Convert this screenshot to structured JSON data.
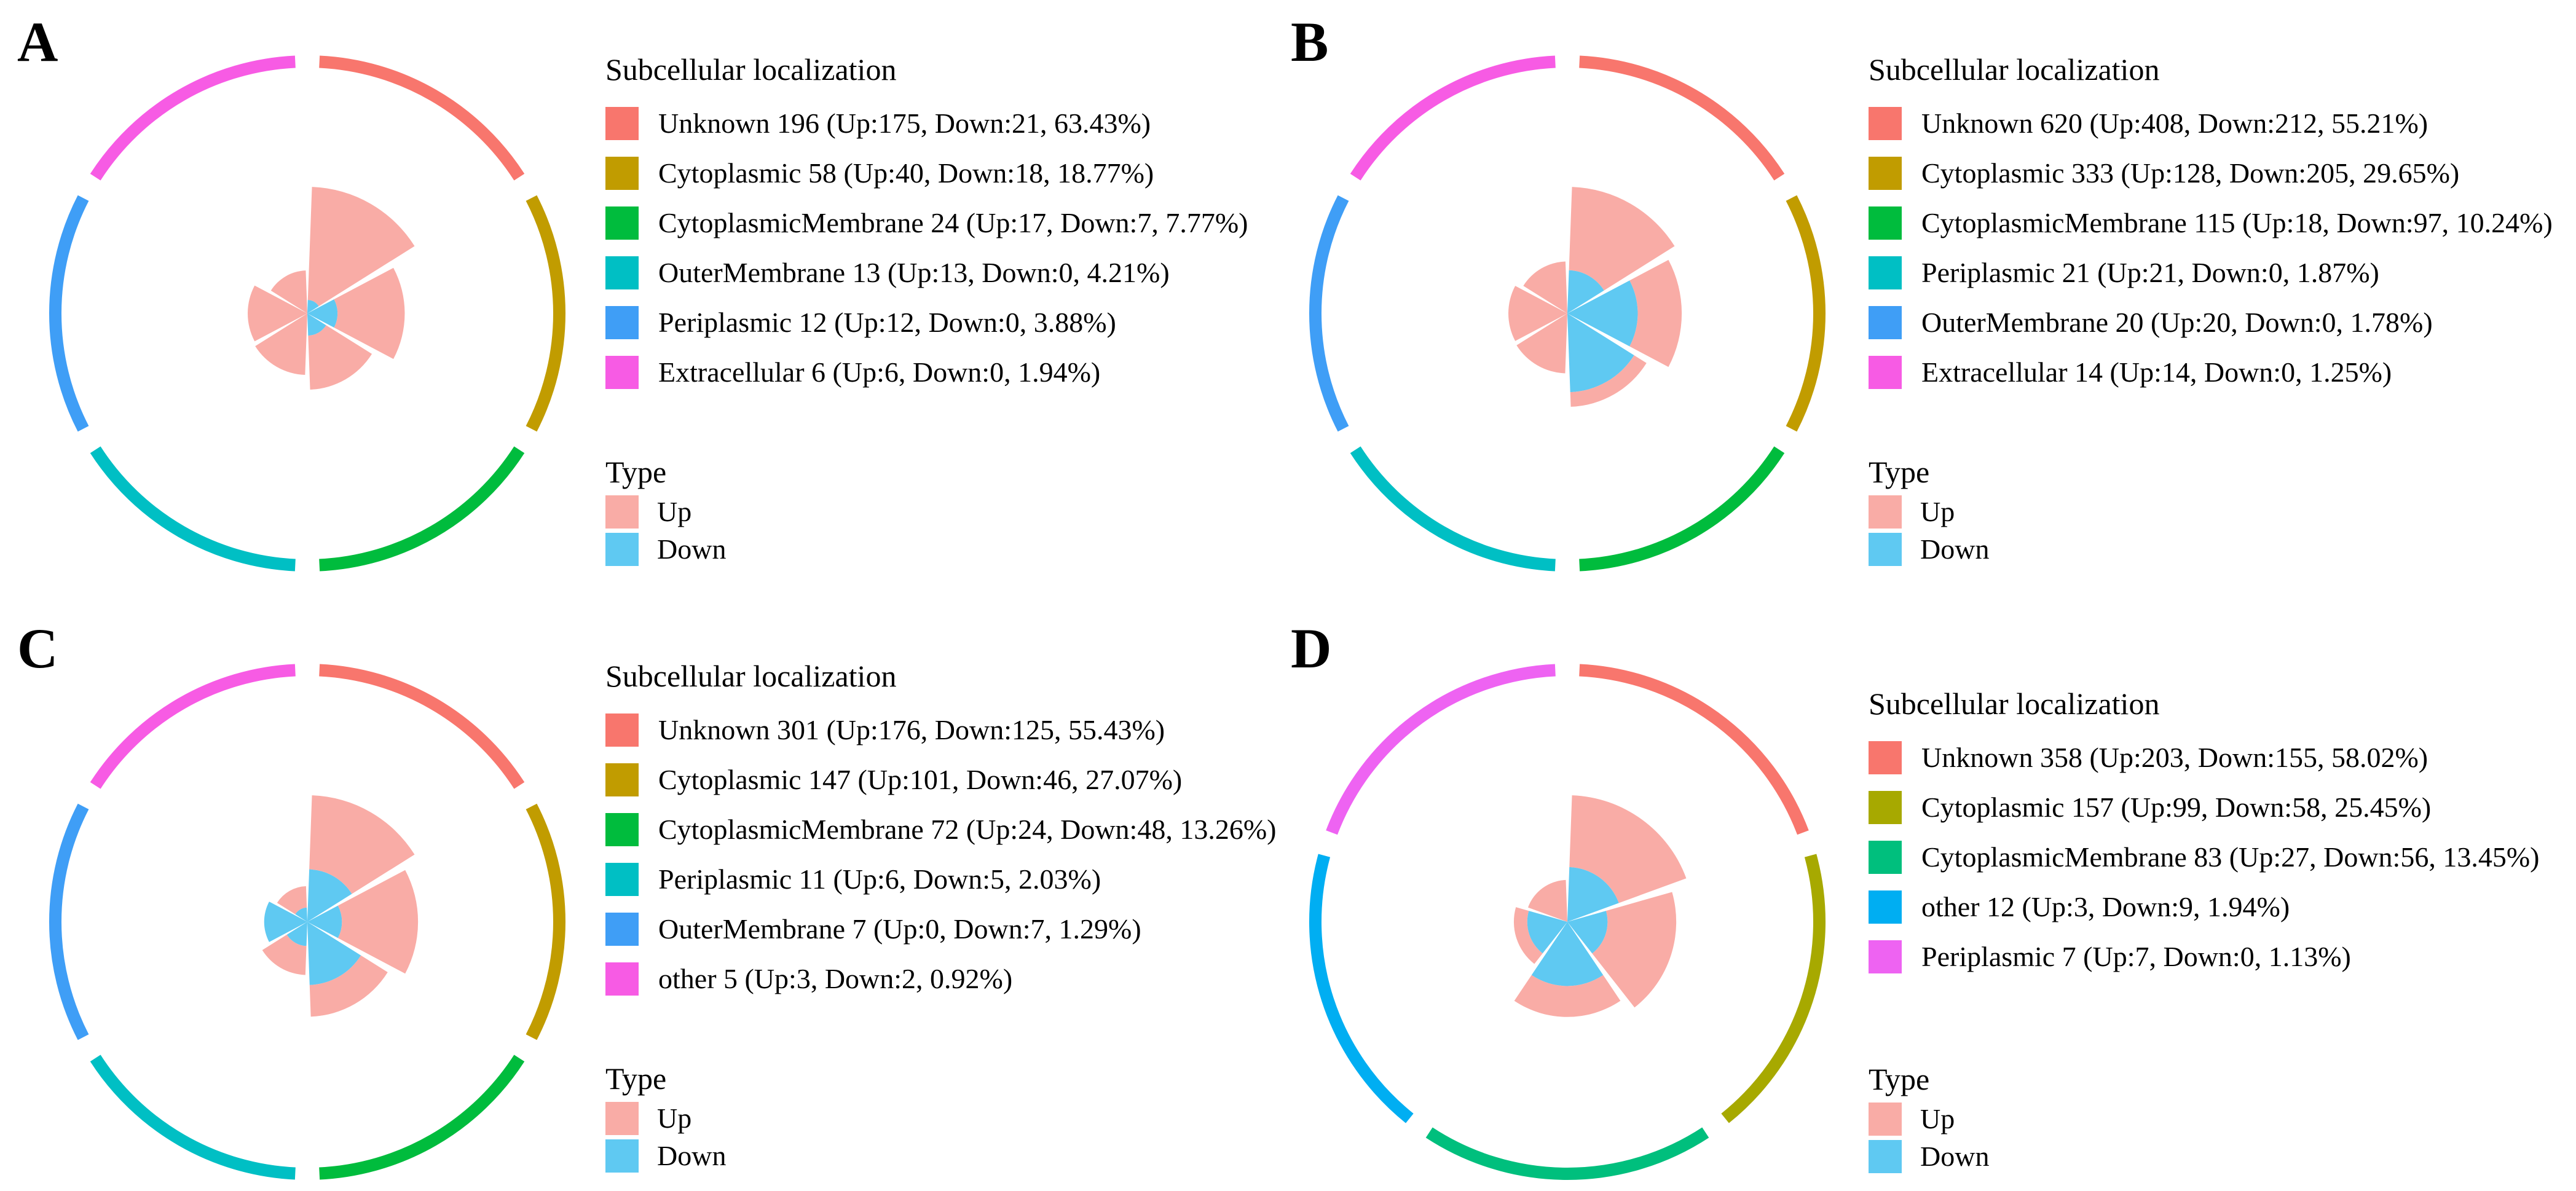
{
  "figure": {
    "background": "#FFFFFF",
    "panels": [
      {
        "letter": "A"
      },
      {
        "letter": "B"
      },
      {
        "letter": "C"
      },
      {
        "letter": "D"
      }
    ]
  },
  "type_legend": {
    "title": "Type",
    "items": [
      {
        "label": "Up",
        "color": "#F9ACA6"
      },
      {
        "label": "Down",
        "color": "#5FC9F2"
      }
    ]
  },
  "chart_data": [
    {
      "panel": "A",
      "type": "polar-stacked-rose",
      "legend_title": "Subcellular localization",
      "layout_hint": "equal angular sectors clockwise from top; outer ring arc per category; radial length ~ log10(total); Down stacked innermost",
      "categories": [
        {
          "name": "Unknown",
          "total": 196,
          "up": 175,
          "down": 21,
          "percent": "63.43%",
          "color": "#F8766D",
          "label": "Unknown 196 (Up:175, Down:21, 63.43%)"
        },
        {
          "name": "Cytoplasmic",
          "total": 58,
          "up": 40,
          "down": 18,
          "percent": "18.77%",
          "color": "#C19C00",
          "label": "Cytoplasmic 58 (Up:40, Down:18, 18.77%)"
        },
        {
          "name": "CytoplasmicMembrane",
          "total": 24,
          "up": 17,
          "down": 7,
          "percent": "7.77%",
          "color": "#00BC3D",
          "label": "CytoplasmicMembrane 24 (Up:17, Down:7, 7.77%)"
        },
        {
          "name": "OuterMembrane",
          "total": 13,
          "up": 13,
          "down": 0,
          "percent": "4.21%",
          "color": "#00BFC4",
          "label": "OuterMembrane 13 (Up:13, Down:0, 4.21%)"
        },
        {
          "name": "Periplasmic",
          "total": 12,
          "up": 12,
          "down": 0,
          "percent": "3.88%",
          "color": "#3F9EF6",
          "label": "Periplasmic 12 (Up:12, Down:0, 3.88%)"
        },
        {
          "name": "Extracellular",
          "total": 6,
          "up": 6,
          "down": 0,
          "percent": "1.94%",
          "color": "#F75BE4",
          "label": "Extracellular 6 (Up:6, Down:0, 1.94%)"
        }
      ]
    },
    {
      "panel": "B",
      "type": "polar-stacked-rose",
      "legend_title": "Subcellular localization",
      "layout_hint": "equal angular sectors clockwise from top; outer ring arc per category; radial length ~ log10(total); Down stacked innermost",
      "categories": [
        {
          "name": "Unknown",
          "total": 620,
          "up": 408,
          "down": 212,
          "percent": "55.21%",
          "color": "#F8766D",
          "label": "Unknown 620 (Up:408, Down:212, 55.21%)"
        },
        {
          "name": "Cytoplasmic",
          "total": 333,
          "up": 128,
          "down": 205,
          "percent": "29.65%",
          "color": "#C19C00",
          "label": "Cytoplasmic 333 (Up:128, Down:205, 29.65%)"
        },
        {
          "name": "CytoplasmicMembrane",
          "total": 115,
          "up": 18,
          "down": 97,
          "percent": "10.24%",
          "color": "#00BC3D",
          "label": "CytoplasmicMembrane 115 (Up:18, Down:97, 10.24%)"
        },
        {
          "name": "Periplasmic",
          "total": 21,
          "up": 21,
          "down": 0,
          "percent": "1.87%",
          "color": "#00BFC4",
          "label": "Periplasmic 21 (Up:21, Down:0, 1.87%)"
        },
        {
          "name": "OuterMembrane",
          "total": 20,
          "up": 20,
          "down": 0,
          "percent": "1.78%",
          "color": "#3F9EF6",
          "label": "OuterMembrane 20 (Up:20, Down:0, 1.78%)"
        },
        {
          "name": "Extracellular",
          "total": 14,
          "up": 14,
          "down": 0,
          "percent": "1.25%",
          "color": "#F75BE4",
          "label": "Extracellular 14 (Up:14, Down:0, 1.25%)"
        }
      ]
    },
    {
      "panel": "C",
      "type": "polar-stacked-rose",
      "legend_title": "Subcellular localization",
      "layout_hint": "equal angular sectors clockwise from top; outer ring arc per category; radial length ~ log10(total); Down stacked innermost",
      "categories": [
        {
          "name": "Unknown",
          "total": 301,
          "up": 176,
          "down": 125,
          "percent": "55.43%",
          "color": "#F8766D",
          "label": "Unknown 301 (Up:176, Down:125, 55.43%)"
        },
        {
          "name": "Cytoplasmic",
          "total": 147,
          "up": 101,
          "down": 46,
          "percent": "27.07%",
          "color": "#C19C00",
          "label": "Cytoplasmic 147 (Up:101, Down:46, 27.07%)"
        },
        {
          "name": "CytoplasmicMembrane",
          "total": 72,
          "up": 24,
          "down": 48,
          "percent": "13.26%",
          "color": "#00BC3D",
          "label": "CytoplasmicMembrane 72 (Up:24, Down:48, 13.26%)"
        },
        {
          "name": "Periplasmic",
          "total": 11,
          "up": 6,
          "down": 5,
          "percent": "2.03%",
          "color": "#00BFC4",
          "label": "Periplasmic 11 (Up:6, Down:5, 2.03%)"
        },
        {
          "name": "OuterMembrane",
          "total": 7,
          "up": 0,
          "down": 7,
          "percent": "1.29%",
          "color": "#3F9EF6",
          "label": "OuterMembrane 7 (Up:0, Down:7, 1.29%)"
        },
        {
          "name": "other",
          "total": 5,
          "up": 3,
          "down": 2,
          "percent": "0.92%",
          "color": "#F75BE4",
          "label": "other 5 (Up:3, Down:2, 0.92%)"
        }
      ]
    },
    {
      "panel": "D",
      "type": "polar-stacked-rose",
      "legend_title": "Subcellular localization",
      "layout_hint": "equal angular sectors clockwise from top; outer ring arc per category; radial length ~ log10(total); Down stacked innermost",
      "categories": [
        {
          "name": "Unknown",
          "total": 358,
          "up": 203,
          "down": 155,
          "percent": "58.02%",
          "color": "#F8766D",
          "label": "Unknown 358 (Up:203, Down:155, 58.02%)"
        },
        {
          "name": "Cytoplasmic",
          "total": 157,
          "up": 99,
          "down": 58,
          "percent": "25.45%",
          "color": "#A7A900",
          "label": "Cytoplasmic 157 (Up:99, Down:58, 25.45%)"
        },
        {
          "name": "CytoplasmicMembrane",
          "total": 83,
          "up": 27,
          "down": 56,
          "percent": "13.45%",
          "color": "#00BF7D",
          "label": "CytoplasmicMembrane 83 (Up:27, Down:56, 13.45%)"
        },
        {
          "name": "other",
          "total": 12,
          "up": 3,
          "down": 9,
          "percent": "1.94%",
          "color": "#00AEF2",
          "label": "other 12 (Up:3, Down:9, 1.94%)"
        },
        {
          "name": "Periplasmic",
          "total": 7,
          "up": 7,
          "down": 0,
          "percent": "1.13%",
          "color": "#EE63F2",
          "label": "Periplasmic 7 (Up:7, Down:0, 1.13%)"
        }
      ]
    }
  ]
}
